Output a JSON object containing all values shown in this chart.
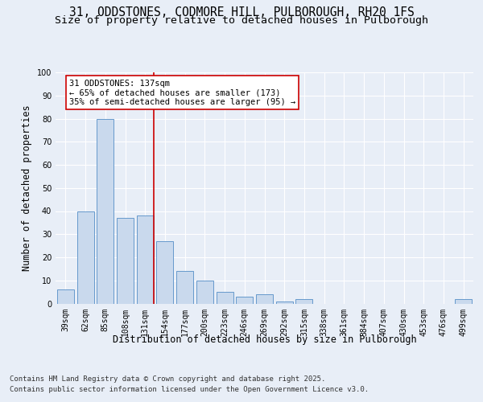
{
  "title_line1": "31, ODDSTONES, CODMORE HILL, PULBOROUGH, RH20 1FS",
  "title_line2": "Size of property relative to detached houses in Pulborough",
  "xlabel": "Distribution of detached houses by size in Pulborough",
  "ylabel": "Number of detached properties",
  "categories": [
    "39sqm",
    "62sqm",
    "85sqm",
    "108sqm",
    "131sqm",
    "154sqm",
    "177sqm",
    "200sqm",
    "223sqm",
    "246sqm",
    "269sqm",
    "292sqm",
    "315sqm",
    "338sqm",
    "361sqm",
    "384sqm",
    "407sqm",
    "430sqm",
    "453sqm",
    "476sqm",
    "499sqm"
  ],
  "values": [
    6,
    40,
    80,
    37,
    38,
    27,
    14,
    10,
    5,
    3,
    4,
    1,
    2,
    0,
    0,
    0,
    0,
    0,
    0,
    0,
    2
  ],
  "bar_color": "#c9d9ed",
  "bar_edge_color": "#6699cc",
  "vline_x_index": 4.42,
  "vline_color": "#cc0000",
  "annotation_box_text": "31 ODDSTONES: 137sqm\n← 65% of detached houses are smaller (173)\n35% of semi-detached houses are larger (95) →",
  "annotation_box_color": "#cc0000",
  "ylim": [
    0,
    100
  ],
  "yticks": [
    0,
    10,
    20,
    30,
    40,
    50,
    60,
    70,
    80,
    90,
    100
  ],
  "bg_color": "#e8eef7",
  "plot_bg_color": "#e8eef7",
  "grid_color": "#ffffff",
  "footer_line1": "Contains HM Land Registry data © Crown copyright and database right 2025.",
  "footer_line2": "Contains public sector information licensed under the Open Government Licence v3.0.",
  "title_fontsize": 10.5,
  "subtitle_fontsize": 9.5,
  "axis_label_fontsize": 8.5,
  "tick_fontsize": 7,
  "annotation_fontsize": 7.5,
  "footer_fontsize": 6.5
}
